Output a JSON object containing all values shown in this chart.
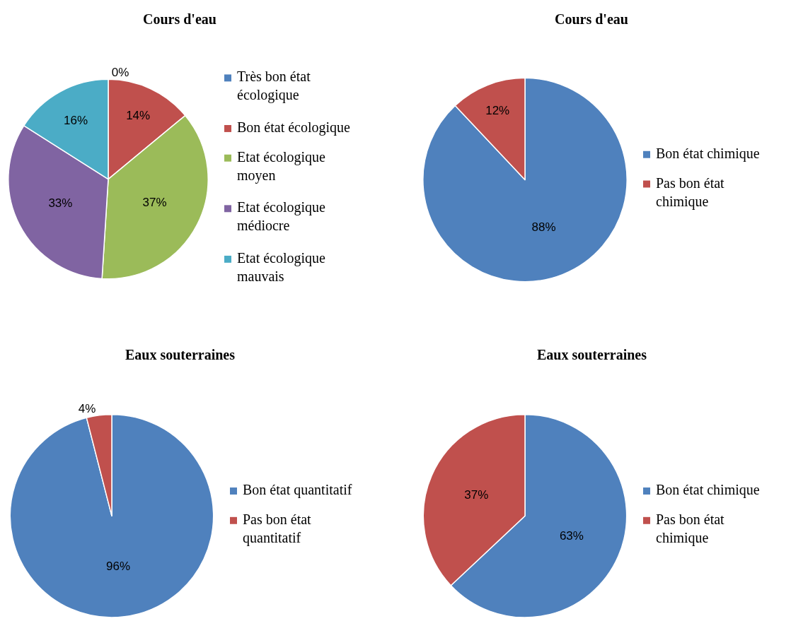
{
  "chart_data": [
    {
      "type": "pie",
      "title": "Cours d'eau",
      "categories": [
        "Très bon état écologique",
        "Bon état écologique",
        "Etat écologique moyen",
        "Etat écologique médiocre",
        "Etat écologique mauvais"
      ],
      "values": [
        0,
        14,
        37,
        33,
        16
      ],
      "value_labels": [
        "0%",
        "14%",
        "37%",
        "33%",
        "16%"
      ],
      "colors": [
        "#4f81bd",
        "#c0504d",
        "#9bbb59",
        "#8064a2",
        "#4bacc6"
      ],
      "legend": "right"
    },
    {
      "type": "pie",
      "title": "Cours d'eau",
      "categories": [
        "Bon état chimique",
        "Pas bon état chimique"
      ],
      "values": [
        88,
        12
      ],
      "value_labels": [
        "88%",
        "12%"
      ],
      "colors": [
        "#4f81bd",
        "#c0504d"
      ],
      "legend": "right"
    },
    {
      "type": "pie",
      "title": "Eaux souterraines",
      "categories": [
        "Bon état quantitatif",
        "Pas bon état quantitatif"
      ],
      "values": [
        96,
        4
      ],
      "value_labels": [
        "96%",
        "4%"
      ],
      "colors": [
        "#4f81bd",
        "#c0504d"
      ],
      "legend": "right"
    },
    {
      "type": "pie",
      "title": "Eaux souterraines",
      "categories": [
        "Bon état chimique",
        "Pas bon état chimique"
      ],
      "values": [
        63,
        37
      ],
      "value_labels": [
        "63%",
        "37%"
      ],
      "colors": [
        "#4f81bd",
        "#c0504d"
      ],
      "legend": "right"
    }
  ]
}
